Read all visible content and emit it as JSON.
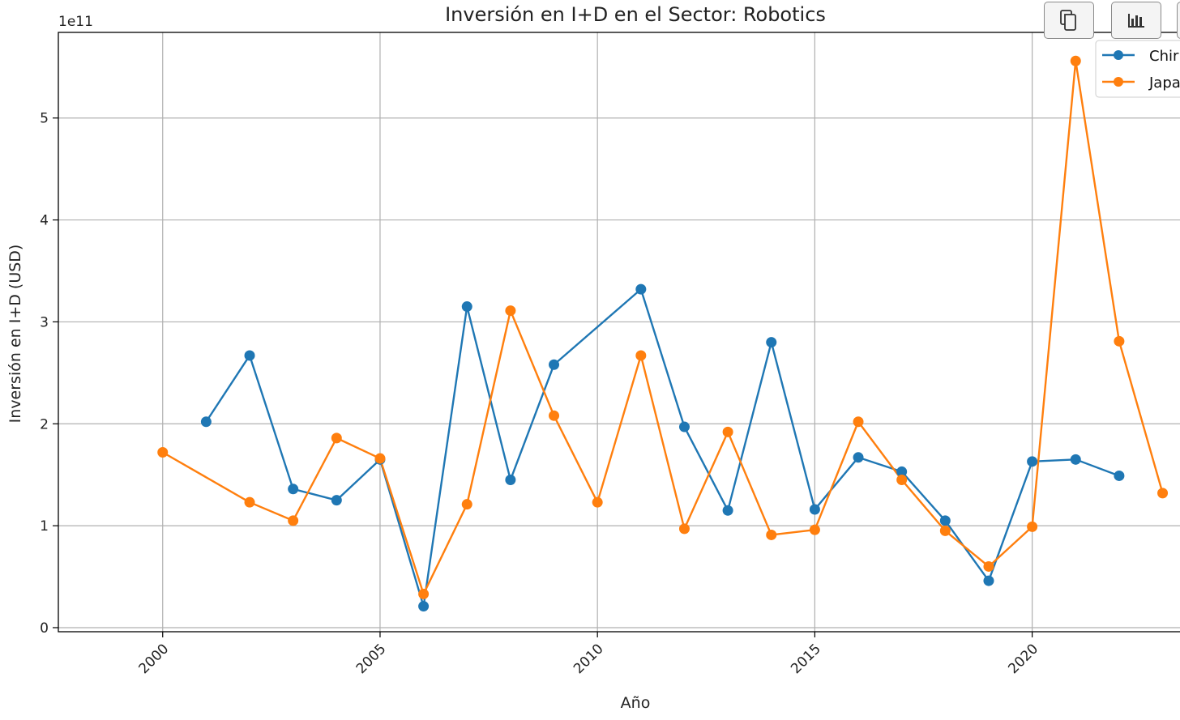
{
  "chart_data": {
    "type": "line",
    "title": "Inversión en I+D en el Sector: Robotics",
    "xlabel": "Año",
    "ylabel": "Inversión en I+D (USD)",
    "y_offset_label": "1e11",
    "xlim": [
      1997.6,
      2023.4
    ],
    "ylim": [
      -0.04,
      5.84
    ],
    "x_ticks": [
      2000,
      2005,
      2010,
      2015,
      2020
    ],
    "y_ticks": [
      0,
      1,
      2,
      3,
      4,
      5
    ],
    "grid": true,
    "legend_position": "top-right",
    "series": [
      {
        "name": "Chir",
        "color": "#1f77b4",
        "x": [
          2001,
          2002,
          2003,
          2004,
          2005,
          2006,
          2007,
          2008,
          2009,
          2011,
          2012,
          2013,
          2014,
          2015,
          2016,
          2017,
          2018,
          2019,
          2020,
          2021,
          2022
        ],
        "values": [
          2.02,
          2.67,
          1.36,
          1.25,
          1.65,
          0.21,
          3.15,
          1.45,
          2.58,
          3.32,
          1.97,
          1.15,
          2.8,
          1.16,
          1.67,
          1.53,
          1.05,
          0.46,
          1.63,
          1.65,
          1.49
        ]
      },
      {
        "name": "Japa",
        "color": "#ff7f0e",
        "x": [
          2000,
          2002,
          2003,
          2004,
          2005,
          2006,
          2007,
          2008,
          2009,
          2010,
          2011,
          2012,
          2013,
          2014,
          2015,
          2016,
          2017,
          2018,
          2019,
          2020,
          2021,
          2022,
          2023
        ],
        "values": [
          1.72,
          1.23,
          1.05,
          1.86,
          1.66,
          0.33,
          1.21,
          3.11,
          2.08,
          1.23,
          2.67,
          0.97,
          1.92,
          0.91,
          0.96,
          2.02,
          1.45,
          0.95,
          0.6,
          0.99,
          5.56,
          2.81,
          1.32
        ]
      }
    ]
  },
  "toolbar": {
    "copy_icon": "copy-icon",
    "bar_chart_icon": "bar-chart-icon"
  }
}
